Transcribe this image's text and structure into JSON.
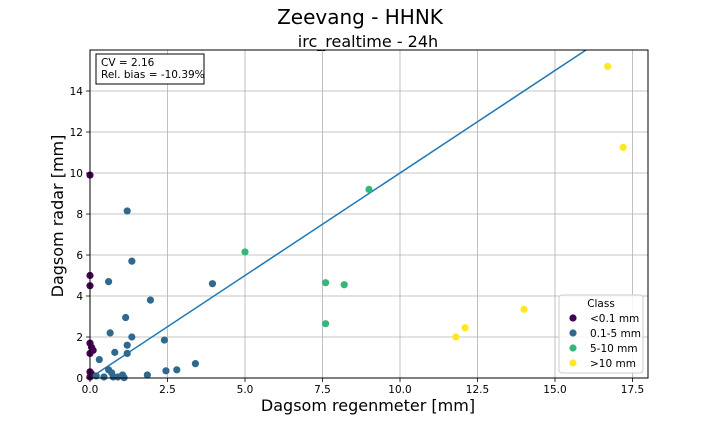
{
  "chart_data": {
    "type": "scatter",
    "suptitle": "Zeevang - HHNK",
    "title": "irc_realtime - 24h",
    "xlabel": "Dagsom regenmeter [mm]",
    "ylabel": "Dagsom radar [mm]",
    "xlim": [
      0,
      18
    ],
    "ylim": [
      0,
      16
    ],
    "xticks": [
      0.0,
      2.5,
      5.0,
      7.5,
      10.0,
      12.5,
      15.0,
      17.5
    ],
    "xtick_labels": [
      "0.0",
      "2.5",
      "5.0",
      "7.5",
      "10.0",
      "12.5",
      "15.0",
      "17.5"
    ],
    "yticks": [
      0,
      2,
      4,
      6,
      8,
      10,
      12,
      14
    ],
    "ytick_labels": [
      "0",
      "2",
      "4",
      "6",
      "8",
      "10",
      "12",
      "14"
    ],
    "grid": true,
    "stats": [
      "CV = 2.16",
      "Rel. bias = -10.39%"
    ],
    "fit_line": {
      "slope": 1.0
    },
    "legend": {
      "title": "Class",
      "position": "lower-right"
    },
    "series": [
      {
        "name": "<0.1 mm",
        "color": "#440154",
        "points": [
          [
            0.0,
            9.9
          ],
          [
            0.0,
            5.0
          ],
          [
            0.0,
            4.5
          ],
          [
            0.0,
            1.7
          ],
          [
            0.05,
            1.5
          ],
          [
            0.1,
            1.35
          ],
          [
            0.0,
            1.2
          ],
          [
            0.0,
            0.3
          ],
          [
            0.05,
            0.2
          ],
          [
            0.0,
            0.05
          ]
        ]
      },
      {
        "name": "0.1-5 mm",
        "color": "#31688e",
        "points": [
          [
            1.2,
            8.15
          ],
          [
            1.35,
            5.7
          ],
          [
            0.6,
            4.7
          ],
          [
            3.95,
            4.6
          ],
          [
            1.95,
            3.8
          ],
          [
            1.15,
            2.95
          ],
          [
            0.65,
            2.2
          ],
          [
            1.35,
            2.0
          ],
          [
            2.4,
            1.85
          ],
          [
            1.2,
            1.6
          ],
          [
            0.8,
            1.25
          ],
          [
            1.2,
            1.2
          ],
          [
            0.3,
            0.9
          ],
          [
            3.4,
            0.7
          ],
          [
            2.8,
            0.4
          ],
          [
            0.6,
            0.4
          ],
          [
            2.45,
            0.35
          ],
          [
            0.7,
            0.25
          ],
          [
            1.85,
            0.15
          ],
          [
            1.05,
            0.15
          ],
          [
            0.2,
            0.1
          ],
          [
            0.45,
            0.05
          ],
          [
            0.75,
            0.05
          ],
          [
            1.1,
            0.02
          ],
          [
            0.9,
            0.05
          ]
        ]
      },
      {
        "name": "5-10 mm",
        "color": "#35b779",
        "points": [
          [
            9.0,
            9.2
          ],
          [
            5.0,
            6.15
          ],
          [
            7.6,
            4.65
          ],
          [
            8.2,
            4.55
          ],
          [
            7.6,
            2.65
          ]
        ]
      },
      {
        "name": ">10 mm",
        "color": "#fde725",
        "points": [
          [
            16.7,
            15.2
          ],
          [
            17.2,
            11.25
          ],
          [
            14.0,
            3.35
          ],
          [
            12.1,
            2.45
          ],
          [
            11.8,
            2.0
          ]
        ]
      }
    ]
  }
}
